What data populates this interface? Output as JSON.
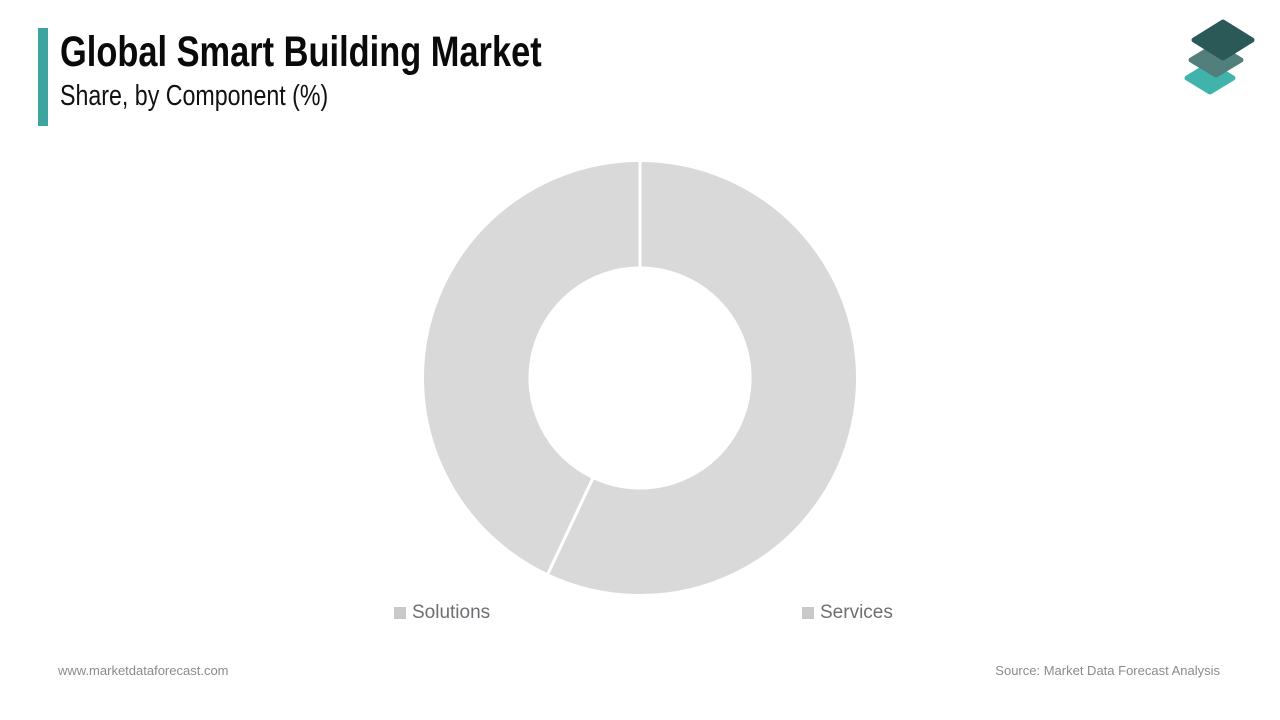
{
  "header": {
    "title": "Global Smart Building Market",
    "subtitle": "Share, by Component (%)",
    "accent_color": "#3EA49F"
  },
  "logo": {
    "description": "three stacked diamond layers",
    "layer_colors": [
      "#3FB3AC",
      "#527E7C",
      "#2B5957"
    ]
  },
  "chart_data": {
    "type": "pie",
    "variant": "donut",
    "title": "Global Smart Building Market Share, by Component (%)",
    "categories": [
      "Solutions",
      "Services"
    ],
    "values": [
      57,
      43
    ],
    "unit": "%",
    "segment_colors": [
      "#D9D9D9",
      "#D9D9D9"
    ],
    "divider_color": "#FFFFFF",
    "start_angle_deg": 0,
    "inner_radius_ratio": 0.506,
    "legend_position": "bottom",
    "data_labels_visible": false
  },
  "legend": {
    "items": [
      {
        "label": "Solutions",
        "marker_color": "#C9C9C9"
      },
      {
        "label": "Services",
        "marker_color": "#C9C9C9"
      }
    ],
    "text_color": "#6F6F73"
  },
  "footer": {
    "website": "www.marketdataforecast.com",
    "source": "Source: Market Data Forecast Analysis"
  }
}
